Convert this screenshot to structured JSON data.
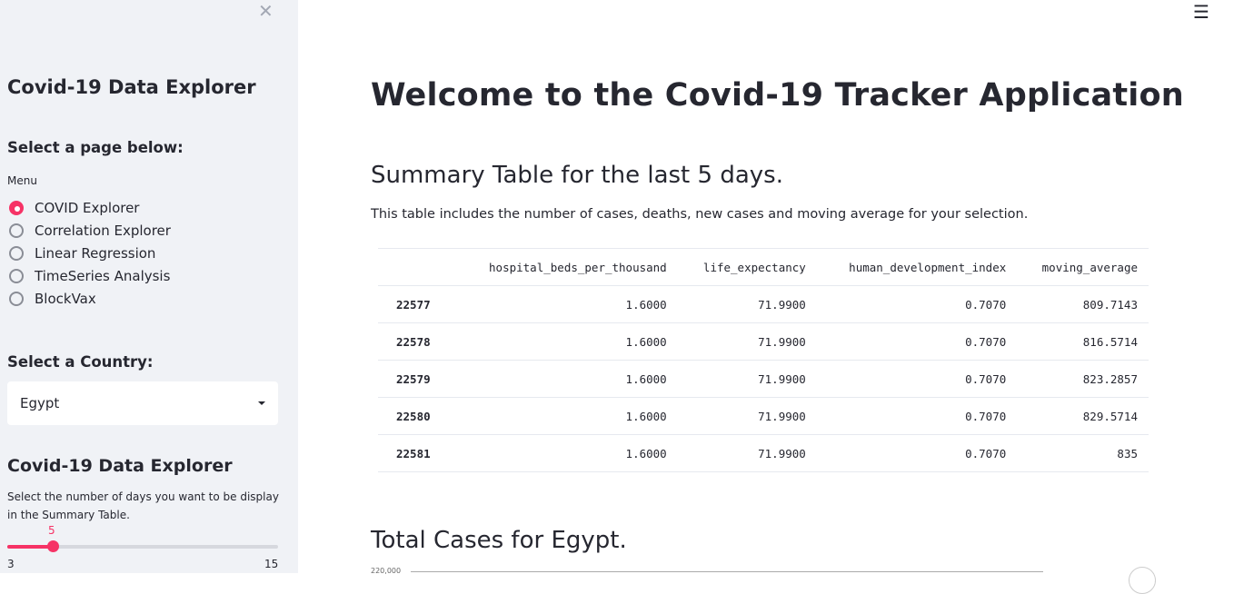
{
  "sidebar": {
    "title": "Covid-19 Data Explorer",
    "page_heading": "Select a page below:",
    "menu_label": "Menu",
    "menu_items": [
      {
        "label": "COVID Explorer",
        "selected": true
      },
      {
        "label": "Correlation Explorer",
        "selected": false
      },
      {
        "label": "Linear Regression",
        "selected": false
      },
      {
        "label": "TimeSeries Analysis",
        "selected": false
      },
      {
        "label": "BlockVax",
        "selected": false
      }
    ],
    "country_heading": "Select a Country:",
    "country_value": "Egypt",
    "explorer_heading": "Covid-19 Data Explorer",
    "slider_desc": "Select the number of days you want to be display in the Summary Table.",
    "slider": {
      "value": "5",
      "min": "3",
      "max": "15"
    }
  },
  "main": {
    "title": "Welcome to the Covid-19 Tracker Application",
    "summary_heading": "Summary Table for the last 5 days.",
    "summary_desc": "This table includes the number of cases, deaths, new cases and moving average for your selection.",
    "table": {
      "columns": [
        "",
        "hospital_beds_per_thousand",
        "life_expectancy",
        "human_development_index",
        "moving_average"
      ],
      "rows": [
        [
          "22577",
          "1.6000",
          "71.9900",
          "0.7070",
          "809.7143"
        ],
        [
          "22578",
          "1.6000",
          "71.9900",
          "0.7070",
          "816.5714"
        ],
        [
          "22579",
          "1.6000",
          "71.9900",
          "0.7070",
          "823.2857"
        ],
        [
          "22580",
          "1.6000",
          "71.9900",
          "0.7070",
          "829.5714"
        ],
        [
          "22581",
          "1.6000",
          "71.9900",
          "0.7070",
          "835"
        ]
      ]
    },
    "chart_heading": "Total Cases for Egypt.",
    "chart_top_tick": "220,000"
  },
  "colors": {
    "accent": "#f63366",
    "sidebar_bg": "#f0f2f6",
    "text": "#262730"
  }
}
